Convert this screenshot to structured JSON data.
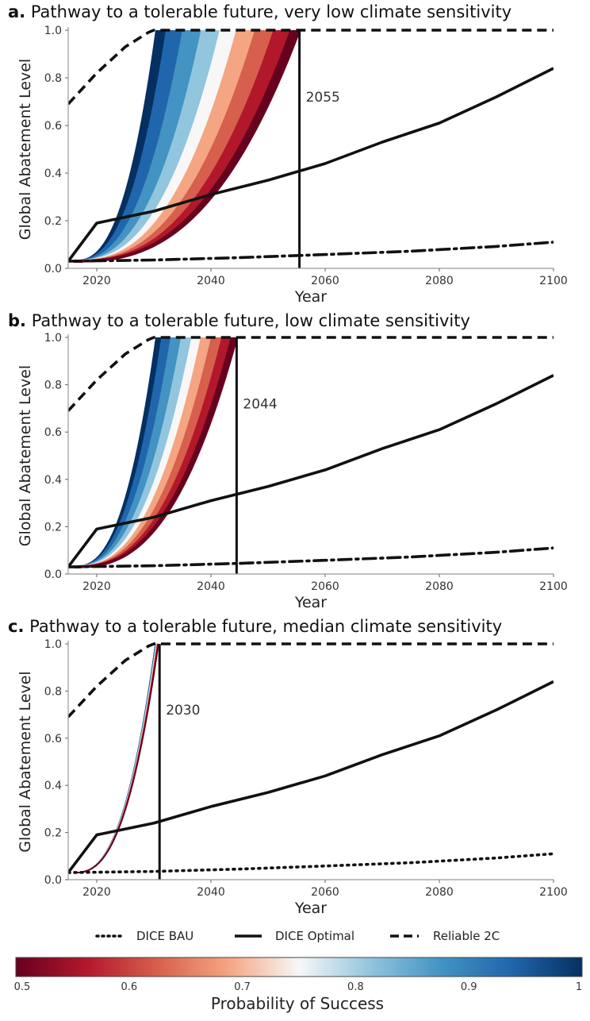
{
  "chart_data": [
    {
      "type": "line",
      "panel_letter": "a.",
      "title": "Pathway to a tolerable future, very low climate sensitivity",
      "xlabel": "Year",
      "ylabel": "Global Abatement Level",
      "xlim": [
        2015,
        2100
      ],
      "ylim": [
        0,
        1.0
      ],
      "xticks": [
        2020,
        2040,
        2060,
        2080,
        2100
      ],
      "yticks": [
        "0.0",
        "0.2",
        "0.4",
        "0.6",
        "0.8",
        "1.0"
      ],
      "annotation": {
        "text": "2055",
        "x": 2055.5
      },
      "band": {
        "start": 2016,
        "fast_end": 2030.5,
        "slow_end": 2055.5
      },
      "series": [
        {
          "style": "dotted",
          "points": [
            [
              2015,
              0.03
            ],
            [
              2030,
              0.035
            ],
            [
              2045,
              0.045
            ],
            [
              2060,
              0.058
            ],
            [
              2075,
              0.072
            ],
            [
              2090,
              0.092
            ],
            [
              2100,
              0.11
            ]
          ]
        },
        {
          "style": "solid",
          "points": [
            [
              2015,
              0.03
            ],
            [
              2020,
              0.19
            ],
            [
              2030,
              0.24
            ],
            [
              2040,
              0.31
            ],
            [
              2050,
              0.37
            ],
            [
              2060,
              0.44
            ],
            [
              2070,
              0.53
            ],
            [
              2080,
              0.61
            ],
            [
              2090,
              0.72
            ],
            [
              2100,
              0.84
            ]
          ]
        },
        {
          "style": "dashed",
          "points": [
            [
              2015,
              0.69
            ],
            [
              2020,
              0.82
            ],
            [
              2025,
              0.93
            ],
            [
              2029,
              0.99
            ],
            [
              2030,
              1.0
            ],
            [
              2100,
              1.0
            ]
          ]
        }
      ]
    },
    {
      "type": "line",
      "panel_letter": "b.",
      "title": "Pathway to a tolerable future, low climate sensitivity",
      "xlabel": "Year",
      "ylabel": "Global Abatement Level",
      "xlim": [
        2015,
        2100
      ],
      "ylim": [
        0,
        1.0
      ],
      "xticks": [
        2020,
        2040,
        2060,
        2080,
        2100
      ],
      "yticks": [
        "0.0",
        "0.2",
        "0.4",
        "0.6",
        "0.8",
        "1.0"
      ],
      "annotation": {
        "text": "2044",
        "x": 2044.5
      },
      "band": {
        "start": 2016,
        "fast_end": 2030.5,
        "slow_end": 2044.5
      },
      "series": [
        {
          "style": "dotted",
          "points": [
            [
              2015,
              0.03
            ],
            [
              2030,
              0.035
            ],
            [
              2045,
              0.045
            ],
            [
              2060,
              0.058
            ],
            [
              2075,
              0.072
            ],
            [
              2090,
              0.092
            ],
            [
              2100,
              0.11
            ]
          ]
        },
        {
          "style": "solid",
          "points": [
            [
              2015,
              0.03
            ],
            [
              2020,
              0.19
            ],
            [
              2030,
              0.24
            ],
            [
              2040,
              0.31
            ],
            [
              2050,
              0.37
            ],
            [
              2060,
              0.44
            ],
            [
              2070,
              0.53
            ],
            [
              2080,
              0.61
            ],
            [
              2090,
              0.72
            ],
            [
              2100,
              0.84
            ]
          ]
        },
        {
          "style": "dashed",
          "points": [
            [
              2015,
              0.69
            ],
            [
              2020,
              0.82
            ],
            [
              2025,
              0.93
            ],
            [
              2029,
              0.99
            ],
            [
              2030,
              1.0
            ],
            [
              2100,
              1.0
            ]
          ]
        }
      ]
    },
    {
      "type": "line",
      "panel_letter": "c.",
      "title": "Pathway to a tolerable future, median climate sensitivity",
      "xlabel": "Year",
      "ylabel": "Global Abatement Level",
      "xlim": [
        2015,
        2100
      ],
      "ylim": [
        0,
        1.0
      ],
      "xticks": [
        2020,
        2040,
        2060,
        2080,
        2100
      ],
      "yticks": [
        "0.0",
        "0.2",
        "0.4",
        "0.6",
        "0.8",
        "1.0"
      ],
      "annotation": {
        "text": "2030",
        "x": 2031
      },
      "band": {
        "start": 2016,
        "fast_end": 2030.3,
        "slow_end": 2030.8
      },
      "series": [
        {
          "style": "dotted",
          "points": [
            [
              2015,
              0.03
            ],
            [
              2030,
              0.035
            ],
            [
              2045,
              0.045
            ],
            [
              2060,
              0.058
            ],
            [
              2075,
              0.072
            ],
            [
              2090,
              0.092
            ],
            [
              2100,
              0.11
            ]
          ]
        },
        {
          "style": "solid",
          "points": [
            [
              2015,
              0.03
            ],
            [
              2020,
              0.19
            ],
            [
              2030,
              0.24
            ],
            [
              2040,
              0.31
            ],
            [
              2050,
              0.37
            ],
            [
              2060,
              0.44
            ],
            [
              2070,
              0.53
            ],
            [
              2080,
              0.61
            ],
            [
              2090,
              0.72
            ],
            [
              2100,
              0.84
            ]
          ]
        },
        {
          "style": "dashed",
          "points": [
            [
              2015,
              0.69
            ],
            [
              2020,
              0.82
            ],
            [
              2025,
              0.93
            ],
            [
              2029,
              0.99
            ],
            [
              2030,
              1.0
            ],
            [
              2100,
              1.0
            ]
          ]
        }
      ]
    }
  ],
  "legend": {
    "placement": "bottom",
    "entries": [
      {
        "label": "DICE BAU",
        "style": "dotted"
      },
      {
        "label": "DICE Optimal",
        "style": "solid"
      },
      {
        "label": "Reliable 2C",
        "style": "dashed"
      }
    ]
  },
  "colorbar": {
    "label": "Probability of Success",
    "range": [
      0.5,
      1.0
    ],
    "ticks": [
      "0.5",
      "0.6",
      "0.7",
      "0.8",
      "0.9",
      "1"
    ],
    "colors": [
      "#67001f",
      "#b2182b",
      "#d6604d",
      "#f4a582",
      "#f7f7f7",
      "#92c5de",
      "#4393c3",
      "#2166ac",
      "#053061"
    ]
  }
}
